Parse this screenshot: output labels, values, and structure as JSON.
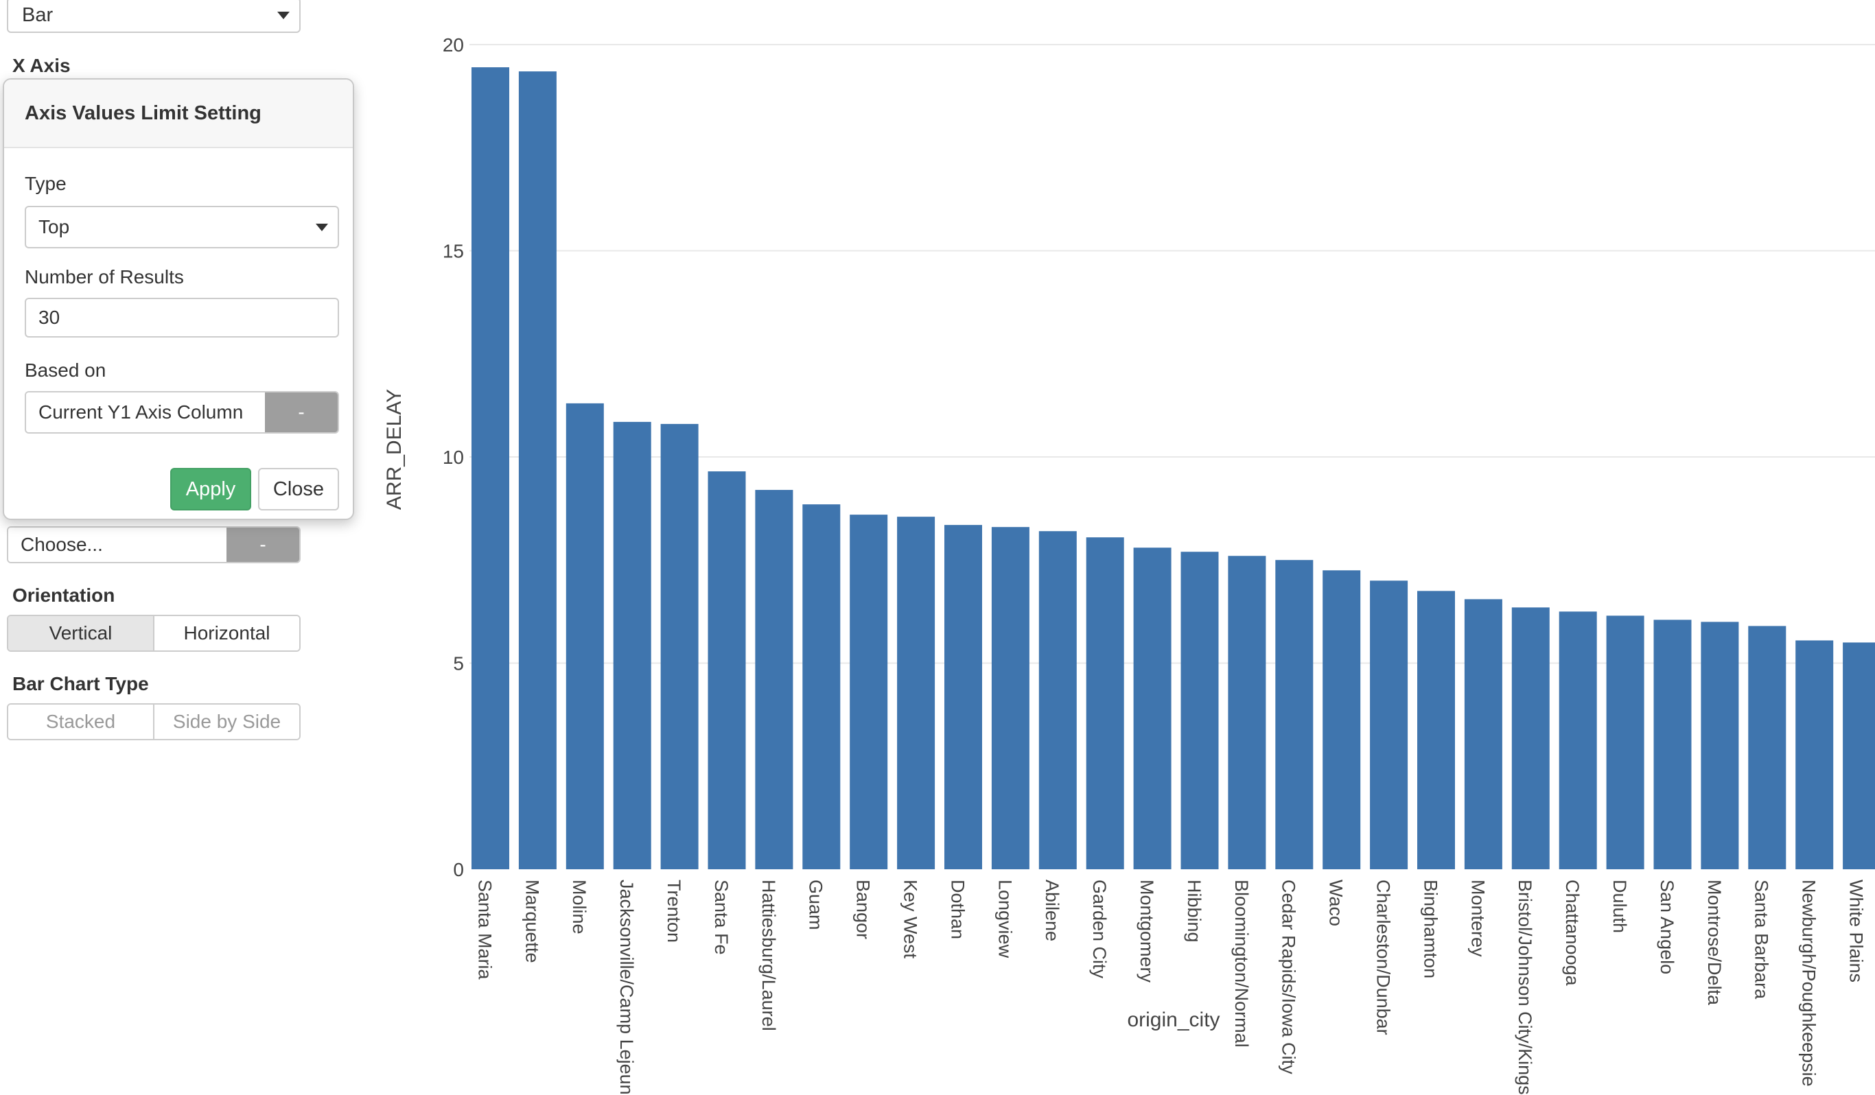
{
  "chart_type_select": {
    "value": "Bar"
  },
  "x_axis_section": {
    "label": "X Axis"
  },
  "popover": {
    "title": "Axis Values Limit Setting",
    "type_label": "Type",
    "type_value": "Top",
    "number_label": "Number of Results",
    "number_value": "30",
    "based_on_label": "Based on",
    "based_on_value": "Current Y1 Axis Column",
    "based_on_addon": "-",
    "apply_label": "Apply",
    "close_label": "Close"
  },
  "color_by": {
    "placeholder": "Choose...",
    "addon": "-"
  },
  "orientation": {
    "label": "Orientation",
    "options": [
      "Vertical",
      "Horizontal"
    ],
    "selected": "Vertical"
  },
  "bar_chart_type": {
    "label": "Bar Chart Type",
    "options": [
      "Stacked",
      "Side by Side"
    ]
  },
  "colors": {
    "bar": "#3f75ae",
    "apply_button": "#4caf6f",
    "addon": "#9e9e9e"
  },
  "chart_data": {
    "type": "bar",
    "xlabel": "origin_city",
    "ylabel": "ARR_DELAY",
    "ylim": [
      0,
      20
    ],
    "yticks": [
      0,
      5,
      10,
      15,
      20
    ],
    "grid": true,
    "categories": [
      "Santa Maria",
      "Marquette",
      "Moline",
      "Jacksonville/Camp Lejeune",
      "Trenton",
      "Santa Fe",
      "Hattiesburg/Laurel",
      "Guam",
      "Bangor",
      "Key West",
      "Dothan",
      "Longview",
      "Abilene",
      "Garden City",
      "Montgomery",
      "Hibbing",
      "Bloomington/Normal",
      "Cedar Rapids/Iowa City",
      "Waco",
      "Charleston/Dunbar",
      "Binghamton",
      "Monterey",
      "Bristol/Johnson City/Kingsport",
      "Chattanooga",
      "Duluth",
      "San Angelo",
      "Montrose/Delta",
      "Santa Barbara",
      "Newburgh/Poughkeepsie",
      "White Plains"
    ],
    "values": [
      19.45,
      19.35,
      11.3,
      10.85,
      10.8,
      9.65,
      9.2,
      8.85,
      8.6,
      8.55,
      8.35,
      8.3,
      8.2,
      8.05,
      7.8,
      7.7,
      7.6,
      7.5,
      7.25,
      7.0,
      6.75,
      6.55,
      6.35,
      6.25,
      6.15,
      6.05,
      6.0,
      5.9,
      5.55,
      5.5
    ]
  }
}
